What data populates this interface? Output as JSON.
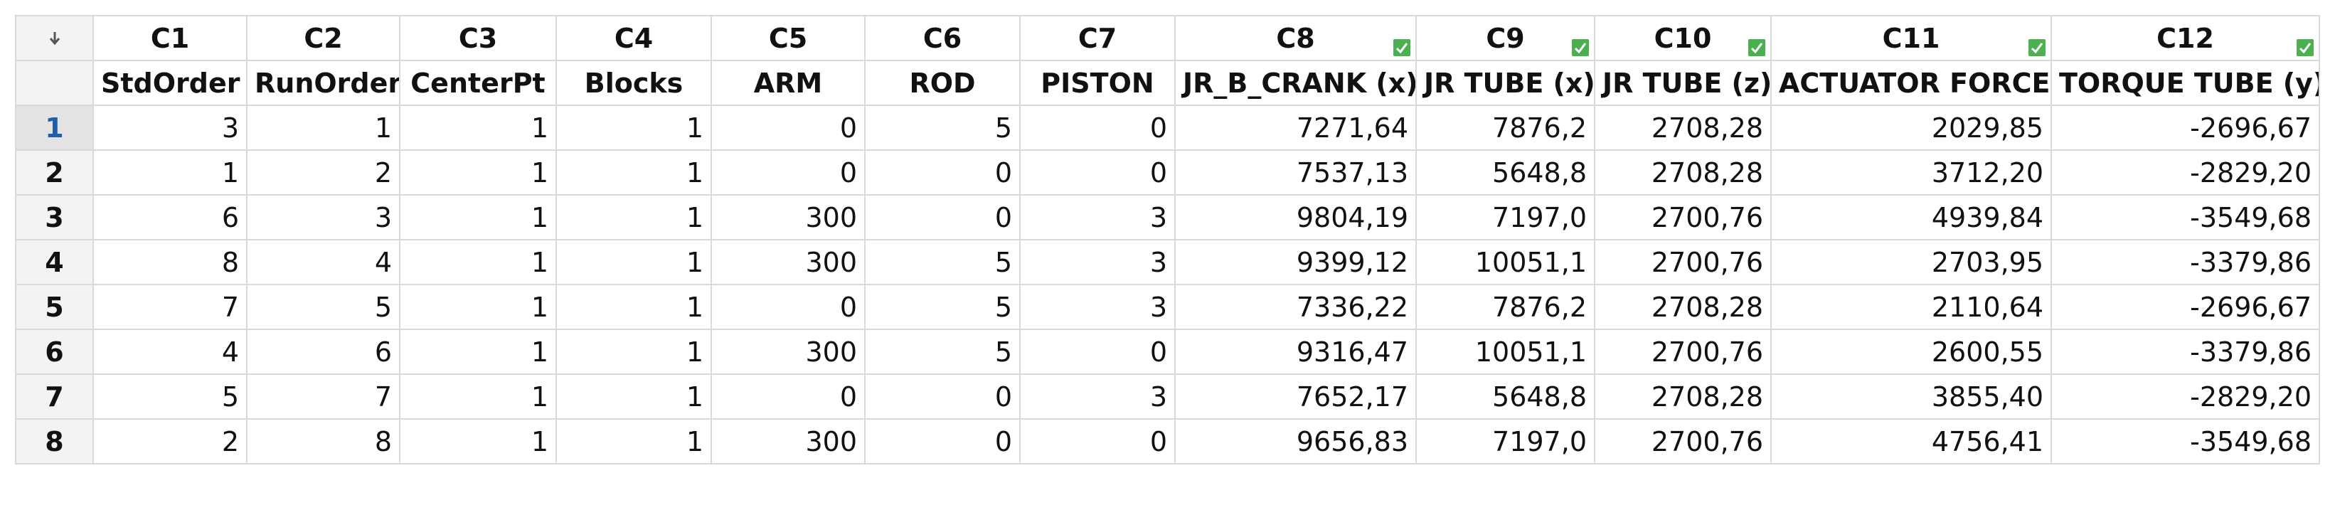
{
  "columns": [
    {
      "id": "C1",
      "name": "StdOrder",
      "checked": false
    },
    {
      "id": "C2",
      "name": "RunOrder",
      "checked": false
    },
    {
      "id": "C3",
      "name": "CenterPt",
      "checked": false
    },
    {
      "id": "C4",
      "name": "Blocks",
      "checked": false
    },
    {
      "id": "C5",
      "name": "ARM",
      "checked": false
    },
    {
      "id": "C6",
      "name": "ROD",
      "checked": false
    },
    {
      "id": "C7",
      "name": "PISTON",
      "checked": false
    },
    {
      "id": "C8",
      "name": "JR_B_CRANK (x)",
      "checked": true
    },
    {
      "id": "C9",
      "name": "JR TUBE (x)",
      "checked": true
    },
    {
      "id": "C10",
      "name": "JR TUBE (z)",
      "checked": true
    },
    {
      "id": "C11",
      "name": "ACTUATOR FORCE",
      "checked": true
    },
    {
      "id": "C12",
      "name": "TORQUE TUBE (y)",
      "checked": true
    }
  ],
  "rows": [
    {
      "label": "1",
      "cells": [
        "3",
        "1",
        "1",
        "1",
        "0",
        "5",
        "0",
        "7271,64",
        "7876,2",
        "2708,28",
        "2029,85",
        "-2696,67"
      ]
    },
    {
      "label": "2",
      "cells": [
        "1",
        "2",
        "1",
        "1",
        "0",
        "0",
        "0",
        "7537,13",
        "5648,8",
        "2708,28",
        "3712,20",
        "-2829,20"
      ]
    },
    {
      "label": "3",
      "cells": [
        "6",
        "3",
        "1",
        "1",
        "300",
        "0",
        "3",
        "9804,19",
        "7197,0",
        "2700,76",
        "4939,84",
        "-3549,68"
      ]
    },
    {
      "label": "4",
      "cells": [
        "8",
        "4",
        "1",
        "1",
        "300",
        "5",
        "3",
        "9399,12",
        "10051,1",
        "2700,76",
        "2703,95",
        "-3379,86"
      ]
    },
    {
      "label": "5",
      "cells": [
        "7",
        "5",
        "1",
        "1",
        "0",
        "5",
        "3",
        "7336,22",
        "7876,2",
        "2708,28",
        "2110,64",
        "-2696,67"
      ]
    },
    {
      "label": "6",
      "cells": [
        "4",
        "6",
        "1",
        "1",
        "300",
        "5",
        "0",
        "9316,47",
        "10051,1",
        "2700,76",
        "2600,55",
        "-3379,86"
      ]
    },
    {
      "label": "7",
      "cells": [
        "5",
        "7",
        "1",
        "1",
        "0",
        "0",
        "3",
        "7652,17",
        "5648,8",
        "2708,28",
        "3855,40",
        "-2829,20"
      ]
    },
    {
      "label": "8",
      "cells": [
        "2",
        "8",
        "1",
        "1",
        "300",
        "0",
        "0",
        "9656,83",
        "7197,0",
        "2700,76",
        "4756,41",
        "-3549,68"
      ]
    }
  ],
  "selected_row": 0
}
